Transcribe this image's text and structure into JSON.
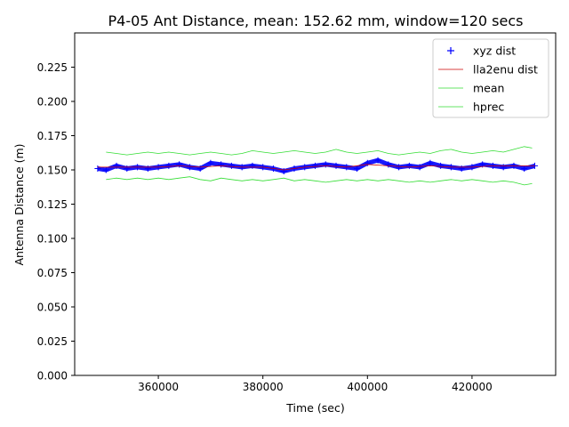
{
  "chart_data": {
    "type": "line",
    "title": "P4-05 Ant Distance, mean: 152.62 mm, window=120 secs",
    "xlabel": "Time (sec)",
    "ylabel": "Antenna Distance (m)",
    "xlim": [
      344000,
      436000
    ],
    "ylim": [
      0.0,
      0.25
    ],
    "x_ticks": [
      360000,
      380000,
      400000,
      420000
    ],
    "x_tick_labels": [
      "360000",
      "380000",
      "400000",
      "420000"
    ],
    "y_ticks": [
      0.0,
      0.025,
      0.05,
      0.075,
      0.1,
      0.125,
      0.15,
      0.175,
      0.2,
      0.225
    ],
    "y_tick_labels": [
      "0.000",
      "0.025",
      "0.050",
      "0.075",
      "0.100",
      "0.125",
      "0.150",
      "0.175",
      "0.200",
      "0.225"
    ],
    "grid": false,
    "legend_position": "top-right",
    "series": [
      {
        "name": "xyz dist",
        "style": "marker-plus",
        "color": "#0000ff",
        "x": [
          348400,
          350000,
          352000,
          354000,
          356000,
          358000,
          360000,
          362000,
          364000,
          366000,
          368000,
          370000,
          372000,
          374000,
          376000,
          378000,
          380000,
          382000,
          384000,
          386000,
          388000,
          390000,
          392000,
          394000,
          396000,
          398000,
          400000,
          402000,
          404000,
          406000,
          408000,
          410000,
          412000,
          414000,
          416000,
          418000,
          420000,
          422000,
          424000,
          426000,
          428000,
          430000,
          432000
        ],
        "values": [
          0.151,
          0.15,
          0.153,
          0.151,
          0.152,
          0.151,
          0.152,
          0.153,
          0.154,
          0.152,
          0.151,
          0.155,
          0.154,
          0.153,
          0.152,
          0.153,
          0.152,
          0.151,
          0.149,
          0.151,
          0.152,
          0.153,
          0.154,
          0.153,
          0.152,
          0.151,
          0.155,
          0.157,
          0.154,
          0.152,
          0.153,
          0.152,
          0.155,
          0.153,
          0.152,
          0.151,
          0.152,
          0.154,
          0.153,
          0.152,
          0.153,
          0.151,
          0.153
        ]
      },
      {
        "name": "lla2enu dist",
        "style": "line",
        "color": "#cc0000",
        "x": [
          348400,
          352000,
          356000,
          360000,
          364000,
          368000,
          372000,
          376000,
          380000,
          384000,
          388000,
          392000,
          396000,
          400000,
          404000,
          408000,
          412000,
          416000,
          420000,
          424000,
          428000,
          432000
        ],
        "values": [
          0.152,
          0.152,
          0.152,
          0.152,
          0.153,
          0.152,
          0.153,
          0.152,
          0.152,
          0.15,
          0.152,
          0.153,
          0.152,
          0.154,
          0.153,
          0.152,
          0.153,
          0.152,
          0.152,
          0.153,
          0.153,
          0.153
        ]
      },
      {
        "name": "mean",
        "style": "line",
        "color": "#33dd33",
        "x": [
          350000,
          352000,
          354000,
          356000,
          358000,
          360000,
          362000,
          364000,
          366000,
          368000,
          370000,
          372000,
          374000,
          376000,
          378000,
          380000,
          382000,
          384000,
          386000,
          388000,
          390000,
          392000,
          394000,
          396000,
          398000,
          400000,
          402000,
          404000,
          406000,
          408000,
          410000,
          412000,
          414000,
          416000,
          418000,
          420000,
          422000,
          424000,
          426000,
          428000,
          430000,
          431500
        ],
        "values": [
          0.163,
          0.162,
          0.161,
          0.162,
          0.163,
          0.162,
          0.163,
          0.162,
          0.161,
          0.162,
          0.163,
          0.162,
          0.161,
          0.162,
          0.164,
          0.163,
          0.162,
          0.163,
          0.164,
          0.163,
          0.162,
          0.163,
          0.165,
          0.163,
          0.162,
          0.163,
          0.164,
          0.162,
          0.161,
          0.162,
          0.163,
          0.162,
          0.164,
          0.165,
          0.163,
          0.162,
          0.163,
          0.164,
          0.163,
          0.165,
          0.167,
          0.166
        ]
      },
      {
        "name": "hprec",
        "style": "line",
        "color": "#33dd33",
        "x": [
          350000,
          352000,
          354000,
          356000,
          358000,
          360000,
          362000,
          364000,
          366000,
          368000,
          370000,
          372000,
          374000,
          376000,
          378000,
          380000,
          382000,
          384000,
          386000,
          388000,
          390000,
          392000,
          394000,
          396000,
          398000,
          400000,
          402000,
          404000,
          406000,
          408000,
          410000,
          412000,
          414000,
          416000,
          418000,
          420000,
          422000,
          424000,
          426000,
          428000,
          430000,
          431500
        ],
        "values": [
          0.143,
          0.144,
          0.143,
          0.144,
          0.143,
          0.144,
          0.143,
          0.144,
          0.145,
          0.143,
          0.142,
          0.144,
          0.143,
          0.142,
          0.143,
          0.142,
          0.143,
          0.144,
          0.142,
          0.143,
          0.142,
          0.141,
          0.142,
          0.143,
          0.142,
          0.143,
          0.142,
          0.143,
          0.142,
          0.141,
          0.142,
          0.141,
          0.142,
          0.143,
          0.142,
          0.143,
          0.142,
          0.141,
          0.142,
          0.141,
          0.139,
          0.14
        ]
      }
    ]
  }
}
